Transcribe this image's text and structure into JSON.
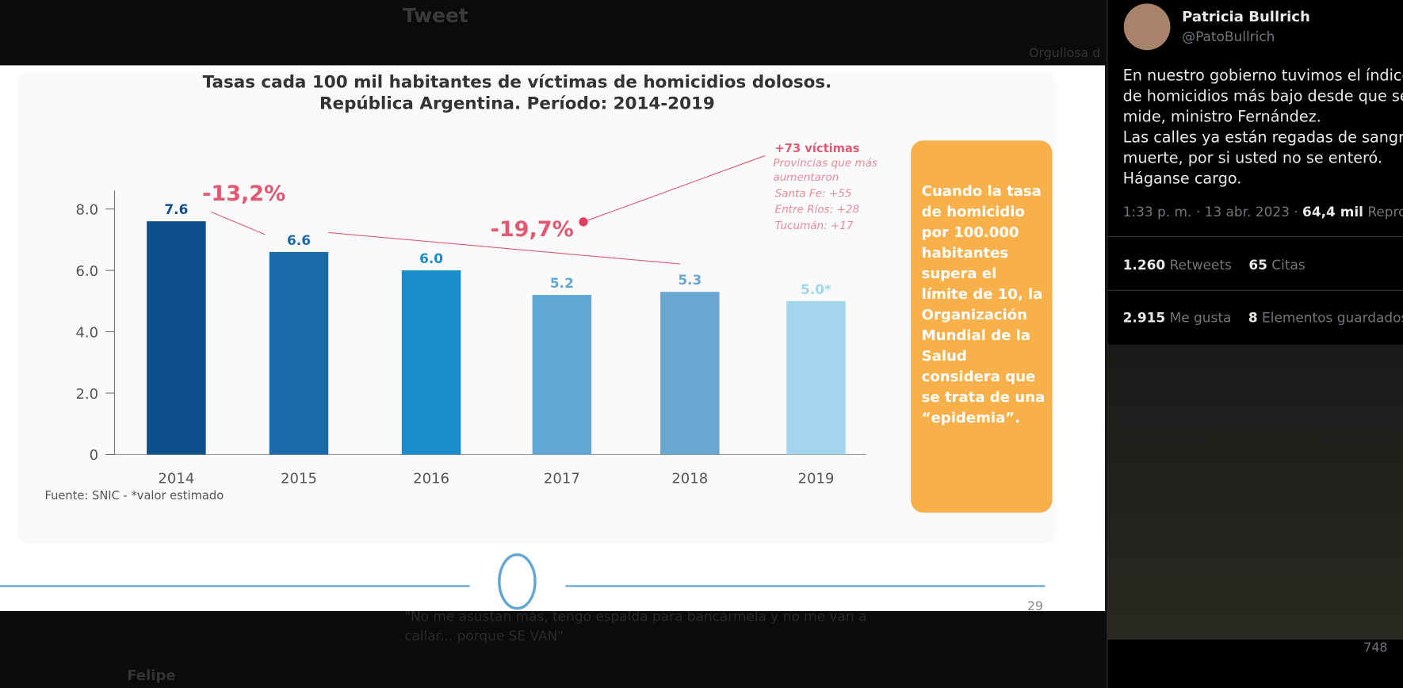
{
  "background": {
    "header": "Tweet",
    "side_text": "Orgullosa d",
    "reply_text": "\"No me asustan más, tengo espalda para bancármela y no me van a callar... porque SE VAN\"",
    "user": "Felipe"
  },
  "chart_data": {
    "type": "bar",
    "title": "Tasas cada 100 mil habitantes de víctimas de homicidios dolosos.",
    "subtitle": "República Argentina. Período: 2014-2019",
    "categories": [
      "2014",
      "2015",
      "2016",
      "2017",
      "2018",
      "2019"
    ],
    "values": [
      7.6,
      6.6,
      6.0,
      5.2,
      5.3,
      5.0
    ],
    "value_labels": [
      "7.6",
      "6.6",
      "6.0",
      "5.2",
      "5.3",
      "5.0*"
    ],
    "colors": [
      "#0d4f8b",
      "#1a69a8",
      "#1a8ccc",
      "#5fa7d4",
      "#6aa6d2",
      "#a3d6ec"
    ],
    "ylim": [
      0,
      8.6
    ],
    "yticks": [
      0,
      {
        "value": 2,
        "label": "2.0"
      },
      {
        "value": 4,
        "label": "4.0"
      },
      {
        "value": 6,
        "label": "6.0"
      },
      {
        "value": 8,
        "label": "8.0"
      }
    ],
    "annotations": {
      "change_2014_2015": "-13,2%",
      "change_2015_2018": "-19,7%",
      "increase": "+73 víctimas",
      "provinces_title": "Provincias que más aumentaron",
      "provinces": [
        "Santa Fe: +55",
        "Entre Ríos: +28",
        "Tucumán: +17"
      ]
    },
    "source": "Fuente: SNIC - *valor estimado",
    "callout": "Cuando la tasa de homicidio por 100.000 habitantes supera el límite de 10, la Organización Mundial de la Salud considera que se trata de una “epidemia”."
  },
  "slide": {
    "page_number": "29"
  },
  "tweet": {
    "name": "Patricia Bullrich",
    "handle": "@PatoBullrich",
    "text": [
      "En nuestro gobierno tuvimos el índice de homicidios más bajo desde que se mide, ministro Fernández.",
      "Las calles ya están regadas de sangre y muerte, por si usted no se enteró. Háganse cargo."
    ],
    "time": "1:33 p. m. · 13 abr. 2023 · ",
    "views": "64,4 mil",
    "views_label": "Reproducciones",
    "retweets": "1.260",
    "retweets_label": "Retweets",
    "quotes": "65",
    "quotes_label": "Citas",
    "likes": "2.915",
    "likes_label": "Me gusta",
    "bookmarks": "8",
    "bookmarks_label": "Elementos guardados",
    "reply_views": "748"
  }
}
